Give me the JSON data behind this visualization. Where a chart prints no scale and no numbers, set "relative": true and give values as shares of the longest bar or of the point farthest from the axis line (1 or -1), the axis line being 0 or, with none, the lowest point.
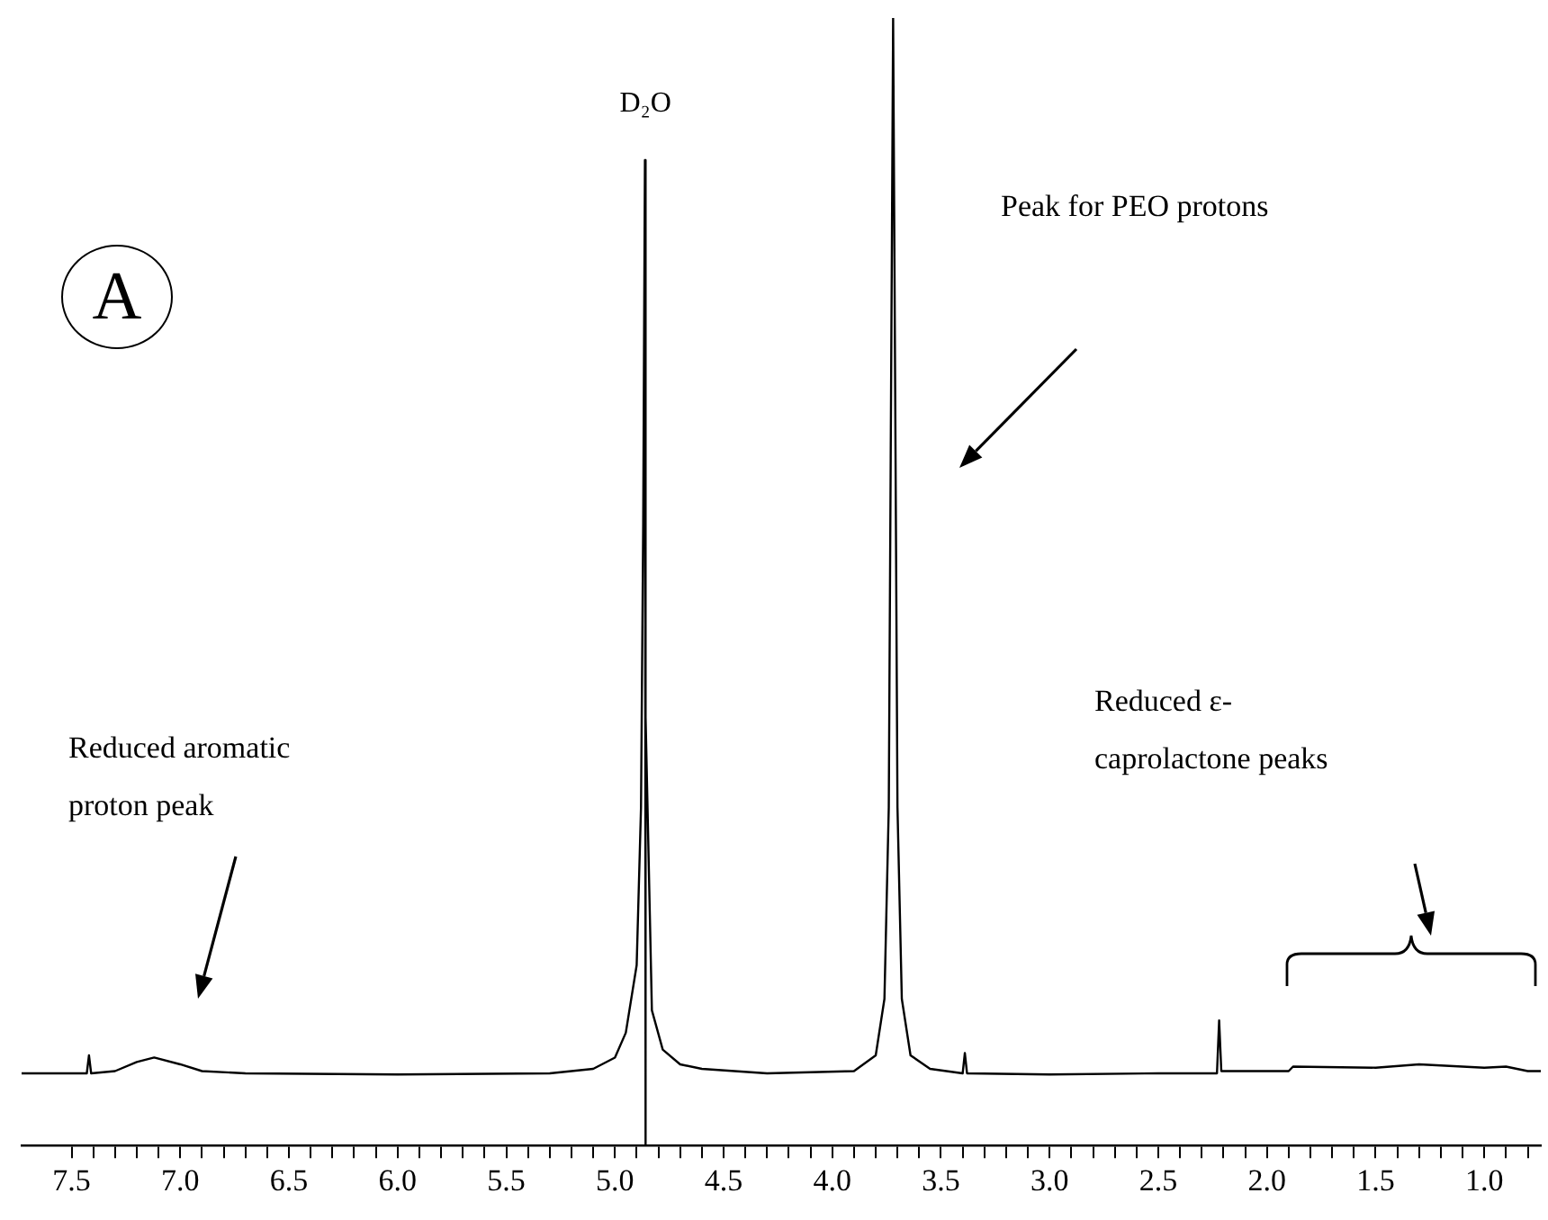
{
  "chart_data": {
    "type": "line",
    "relative": true,
    "marker": "none",
    "line_style": "solid",
    "annotations": [
      "A",
      {
        "text": "D₂O",
        "x": 4.86,
        "y": 0.874
      },
      "Peak for PEO protons",
      "Reduced aromatic proton peak",
      "Reduced ε-caprolactone peaks"
    ],
    "xlim": [
      7.73,
      0.74
    ],
    "xticks": [
      7.5,
      {
        "value": 7.4,
        "label": null
      },
      {
        "value": 7.3,
        "label": null
      },
      {
        "value": 7.2,
        "label": null
      },
      {
        "value": 7.1,
        "label": null
      },
      {
        "value": 7,
        "label": "7.0"
      },
      {
        "value": 6.9,
        "label": null
      },
      {
        "value": 6.8,
        "label": null
      },
      {
        "value": 6.7,
        "label": null
      },
      {
        "value": 6.6,
        "label": null
      },
      6.5,
      {
        "value": 6.4,
        "label": null
      },
      {
        "value": 6.3,
        "label": null
      },
      {
        "value": 6.2,
        "label": null
      },
      {
        "value": 6.1,
        "label": null
      },
      {
        "value": 6,
        "label": "6.0"
      },
      {
        "value": 5.9,
        "label": null
      },
      {
        "value": 5.8,
        "label": null
      },
      {
        "value": 5.7,
        "label": null
      },
      {
        "value": 5.6,
        "label": null
      },
      5.5,
      {
        "value": 5.4,
        "label": null
      },
      {
        "value": 5.3,
        "label": null
      },
      {
        "value": 5.2,
        "label": null
      },
      {
        "value": 5.1,
        "label": null
      },
      {
        "value": 5,
        "label": "5.0"
      },
      {
        "value": 4.9,
        "label": null
      },
      {
        "value": 4.8,
        "label": null
      },
      {
        "value": 4.7,
        "label": null
      },
      {
        "value": 4.6,
        "label": null
      },
      4.5,
      {
        "value": 4.4,
        "label": null
      },
      {
        "value": 4.3,
        "label": null
      },
      {
        "value": 4.2,
        "label": null
      },
      {
        "value": 4.1,
        "label": null
      },
      {
        "value": 4,
        "label": "4.0"
      },
      {
        "value": 3.9,
        "label": null
      },
      {
        "value": 3.8,
        "label": null
      },
      {
        "value": 3.7,
        "label": null
      },
      {
        "value": 3.6,
        "label": null
      },
      3.5,
      {
        "value": 3.4,
        "label": null
      },
      {
        "value": 3.3,
        "label": null
      },
      {
        "value": 3.2,
        "label": null
      },
      {
        "value": 3.1,
        "label": null
      },
      {
        "value": 3,
        "label": "3.0"
      },
      {
        "value": 2.9,
        "label": null
      },
      {
        "value": 2.8,
        "label": null
      },
      {
        "value": 2.7,
        "label": null
      },
      {
        "value": 2.6,
        "label": null
      },
      2.5,
      {
        "value": 2.4,
        "label": null
      },
      {
        "value": 2.3,
        "label": null
      },
      {
        "value": 2.2,
        "label": null
      },
      {
        "value": 2.1,
        "label": null
      },
      {
        "value": 2,
        "label": "2.0"
      },
      {
        "value": 1.9,
        "label": null
      },
      {
        "value": 1.8,
        "label": null
      },
      {
        "value": 1.7,
        "label": null
      },
      {
        "value": 1.6,
        "label": null
      },
      1.5,
      {
        "value": 1.4,
        "label": null
      },
      {
        "value": 1.3,
        "label": null
      },
      {
        "value": 1.2,
        "label": null
      },
      {
        "value": 1.1,
        "label": null
      },
      {
        "value": 1,
        "label": "1.0"
      },
      {
        "value": 0.9,
        "label": null
      },
      {
        "value": 0.8,
        "label": null
      }
    ],
    "series": [
      {
        "color": "#000000",
        "x": [
          7.73,
          7.5,
          7.43,
          7.42,
          7.41,
          7.3,
          7.2,
          7.12,
          7.0,
          6.9,
          6.7,
          6.0,
          5.3,
          5.1,
          5.0,
          4.95,
          4.9,
          4.88,
          4.87,
          4.862,
          4.86,
          4.858,
          4.85,
          4.83,
          4.78,
          4.7,
          4.6,
          4.3,
          3.9,
          3.8,
          3.76,
          3.74,
          3.72,
          3.7,
          3.68,
          3.64,
          3.55,
          3.4,
          3.39,
          3.38,
          3.0,
          2.5,
          2.23,
          2.22,
          2.21,
          1.9,
          1.88,
          1.5,
          1.3,
          1.0,
          0.9,
          0.8,
          0.74
        ],
        "values": [
          0.064,
          0.064,
          0.064,
          0.08,
          0.064,
          0.066,
          0.074,
          0.078,
          0.072,
          0.066,
          0.064,
          0.063,
          0.064,
          0.068,
          0.078,
          0.1,
          0.16,
          0.3,
          0.55,
          0.874,
          0,
          0.38,
          0.3,
          0.12,
          0.085,
          0.072,
          0.068,
          0.064,
          0.066,
          0.08,
          0.13,
          0.3,
          1,
          0.3,
          0.13,
          0.08,
          0.068,
          0.064,
          0.082,
          0.064,
          0.063,
          0.064,
          0.064,
          0.111,
          0.066,
          0.066,
          0.07,
          0.069,
          0.072,
          0.069,
          0.07,
          0.066,
          0.066
        ]
      }
    ]
  }
}
